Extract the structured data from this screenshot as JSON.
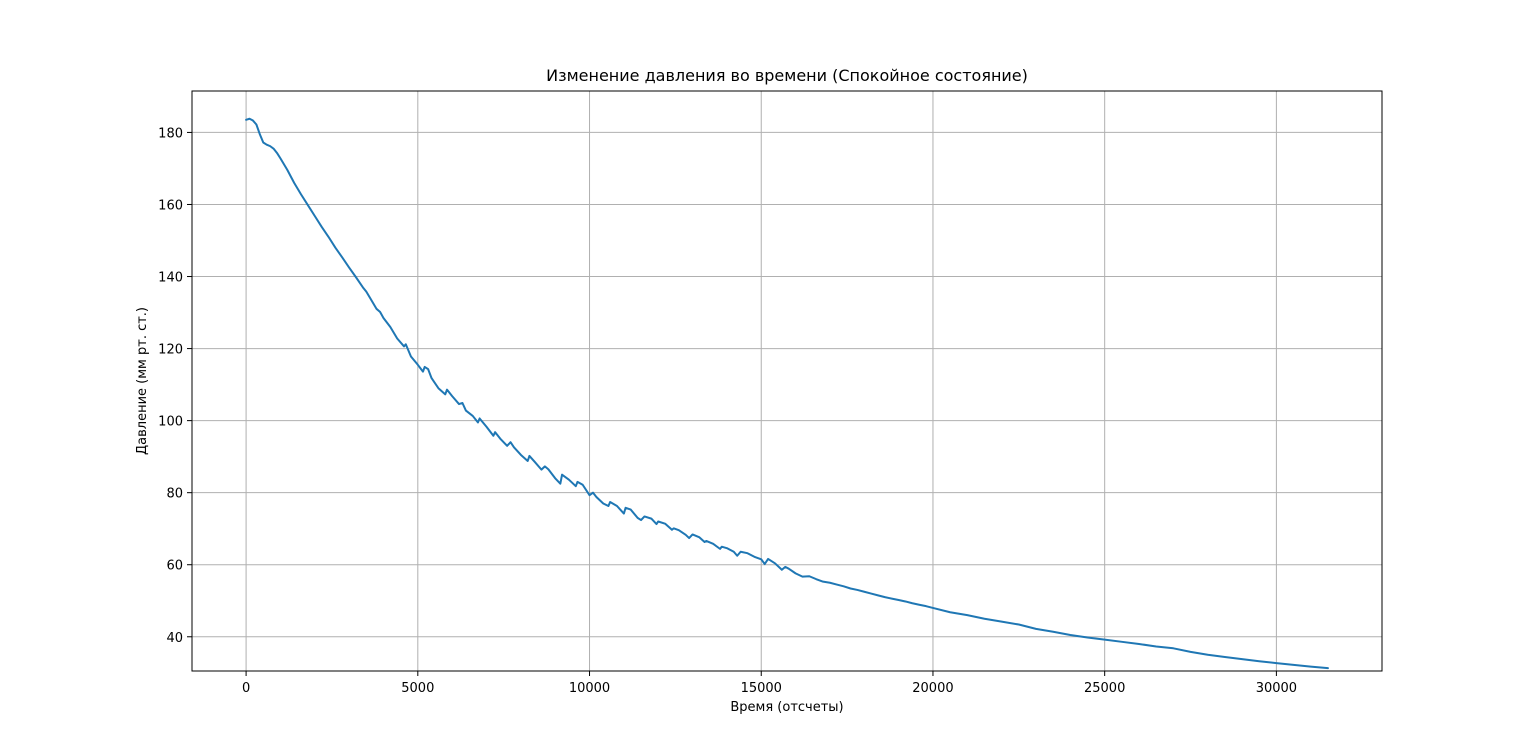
{
  "chart_data": {
    "type": "line",
    "title": "Изменение давления во времени (Спокойное состояние)",
    "xlabel": "Время (отсчеты)",
    "ylabel": "Давление (мм рт. ст.)",
    "xlim": [
      -1575,
      33075
    ],
    "ylim": [
      30.5,
      191.5
    ],
    "xticks": [
      0,
      5000,
      10000,
      15000,
      20000,
      25000,
      30000
    ],
    "yticks": [
      40,
      60,
      80,
      100,
      120,
      140,
      160,
      180
    ],
    "grid": true,
    "legend": "none",
    "colors": {
      "line": "#1f77b4",
      "grid": "#b0b0b0",
      "axes": "#000000"
    },
    "series": [
      {
        "x": [
          0,
          100,
          200,
          300,
          400,
          500,
          600,
          700,
          800,
          900,
          1000,
          1200,
          1400,
          1600,
          1800,
          2000,
          2200,
          2400,
          2600,
          2800,
          3000,
          3200,
          3400,
          3500,
          3600,
          3800,
          3900,
          4000,
          4200,
          4250,
          4400,
          4600,
          4650,
          4800,
          5000,
          5150,
          5200,
          5300,
          5400,
          5600,
          5800,
          5850,
          6000,
          6200,
          6300,
          6400,
          6600,
          6750,
          6800,
          7000,
          7200,
          7250,
          7400,
          7600,
          7700,
          7800,
          8000,
          8200,
          8250,
          8400,
          8600,
          8700,
          8800,
          9000,
          9150,
          9200,
          9400,
          9600,
          9650,
          9800,
          10000,
          10100,
          10200,
          10400,
          10550,
          10600,
          10800,
          11000,
          11050,
          11200,
          11400,
          11500,
          11600,
          11800,
          11950,
          12000,
          12200,
          12400,
          12450,
          12600,
          12800,
          12900,
          13000,
          13200,
          13350,
          13400,
          13600,
          13800,
          13850,
          14000,
          14200,
          14300,
          14400,
          14600,
          14800,
          15000,
          15100,
          15200,
          15400,
          15600,
          15700,
          15800,
          16000,
          16200,
          16400,
          16600,
          16800,
          17000,
          17200,
          17400,
          17600,
          17800,
          18000,
          18200,
          18400,
          18600,
          18800,
          19000,
          19200,
          19400,
          19600,
          19800,
          20000,
          20500,
          21000,
          21500,
          22000,
          22500,
          23000,
          23500,
          24000,
          24500,
          25000,
          25500,
          26000,
          26500,
          27000,
          27500,
          28000,
          28500,
          29000,
          29500,
          30000,
          30500,
          31000,
          31500
        ],
        "values": [
          183.5,
          183.8,
          183.3,
          182.2,
          179.5,
          177.2,
          176.6,
          176.2,
          175.5,
          174.3,
          172.8,
          169.6,
          166.0,
          162.8,
          159.8,
          156.8,
          153.8,
          151.0,
          148.0,
          145.3,
          142.5,
          139.8,
          137.0,
          135.8,
          134.2,
          131.0,
          130.2,
          128.5,
          126.0,
          125.2,
          122.8,
          120.6,
          121.2,
          117.8,
          115.5,
          113.6,
          114.9,
          114.3,
          111.8,
          109.0,
          107.3,
          108.6,
          106.8,
          104.6,
          104.9,
          102.8,
          101.3,
          99.5,
          100.6,
          98.3,
          95.8,
          96.8,
          95.0,
          93.0,
          94.0,
          92.6,
          90.5,
          88.8,
          90.2,
          88.6,
          86.4,
          87.3,
          86.5,
          84.0,
          82.5,
          85.0,
          83.6,
          81.8,
          83.0,
          82.2,
          79.3,
          80.0,
          78.8,
          77.0,
          76.3,
          77.4,
          76.3,
          74.2,
          75.8,
          75.3,
          73.0,
          72.4,
          73.4,
          72.8,
          71.3,
          72.0,
          71.4,
          69.7,
          70.1,
          69.6,
          68.3,
          67.4,
          68.4,
          67.6,
          66.3,
          66.6,
          65.8,
          64.4,
          65.0,
          64.6,
          63.6,
          62.5,
          63.6,
          63.2,
          62.2,
          61.5,
          60.2,
          61.6,
          60.4,
          58.6,
          59.4,
          58.9,
          57.6,
          56.7,
          56.8,
          56.0,
          55.3,
          55.0,
          54.5,
          54.0,
          53.4,
          53.0,
          52.5,
          52.0,
          51.5,
          51.0,
          50.6,
          50.2,
          49.8,
          49.3,
          48.9,
          48.5,
          48.0,
          46.8,
          46.0,
          45.0,
          44.2,
          43.4,
          42.2,
          41.4,
          40.5,
          39.8,
          39.2,
          38.6,
          38.0,
          37.3,
          36.8,
          35.8,
          35.0,
          34.4,
          33.8,
          33.2,
          32.7,
          32.2,
          31.7,
          31.3
        ]
      }
    ]
  }
}
